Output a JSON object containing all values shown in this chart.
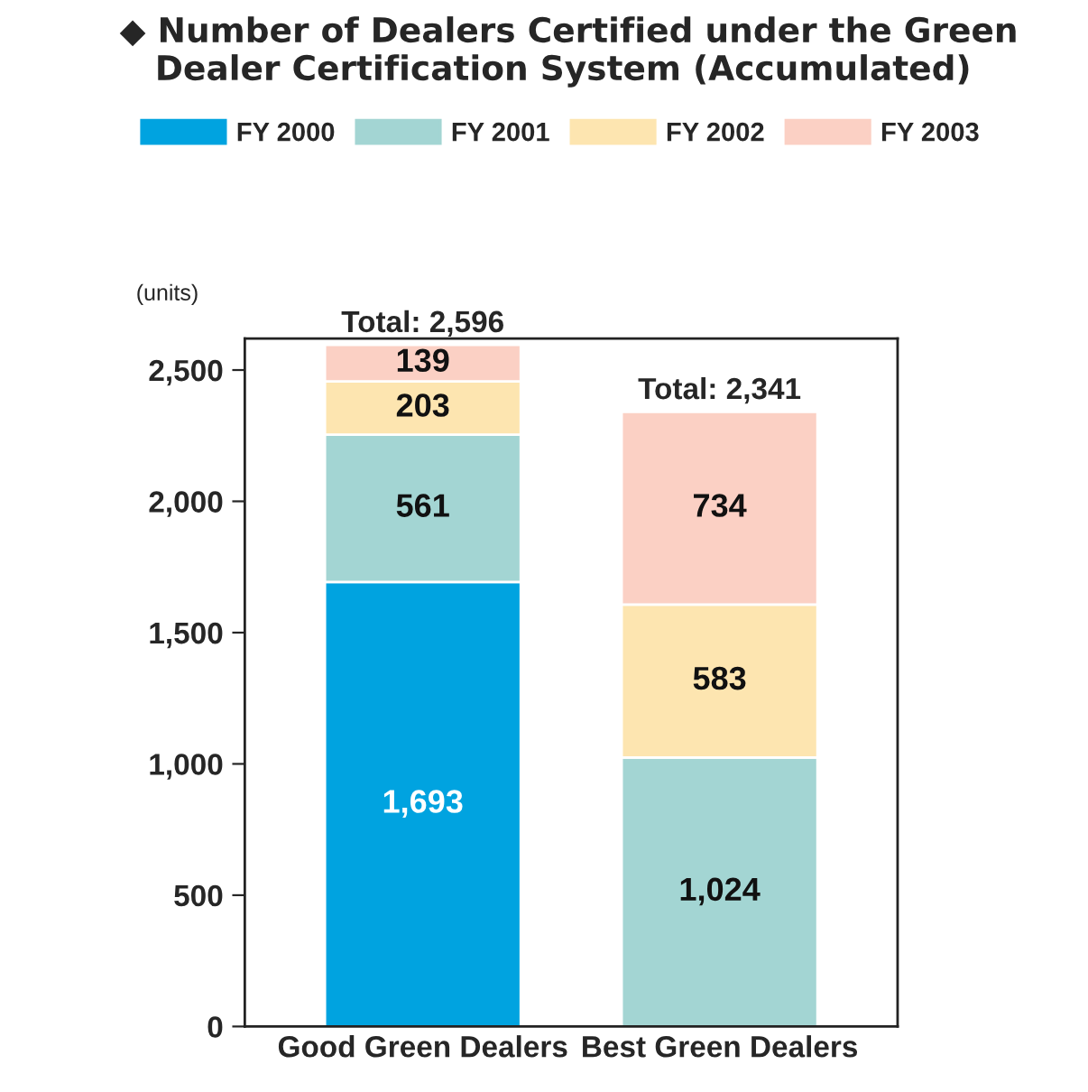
{
  "chart_data": {
    "type": "bar",
    "title": "◆ Number of Dealers Certified under the Green\n   Dealer Certification System (Accumulated)",
    "ylabel": "(units)",
    "categories": [
      "Good Green Dealers",
      "Best Green Dealers"
    ],
    "stacked": true,
    "legend": "top",
    "series": [
      {
        "name": "FY 2000",
        "color": "#00a3e0",
        "values": [
          1693,
          null
        ],
        "value_labels": [
          "1,693",
          null
        ]
      },
      {
        "name": "FY 2001",
        "color": "#a3d5d3",
        "values": [
          561,
          1024
        ],
        "value_labels": [
          "561",
          "1,024"
        ]
      },
      {
        "name": "FY 2002",
        "color": "#fde5b0",
        "values": [
          203,
          583
        ],
        "value_labels": [
          "203",
          "583"
        ]
      },
      {
        "name": "FY 2003",
        "color": "#fbd0c4",
        "values": [
          139,
          734
        ],
        "value_labels": [
          "139",
          "734"
        ]
      }
    ],
    "totals": [
      "Total: 2,596",
      "Total: 2,341"
    ],
    "ylim": [
      0,
      2620
    ],
    "yticks": [
      0,
      {
        "value": 500,
        "label": "500"
      },
      {
        "value": 1000,
        "label": "1,000"
      },
      {
        "value": 1500,
        "label": "1,500"
      },
      {
        "value": 2000,
        "label": "2,000"
      },
      {
        "value": 2500,
        "label": "2,500"
      }
    ]
  }
}
